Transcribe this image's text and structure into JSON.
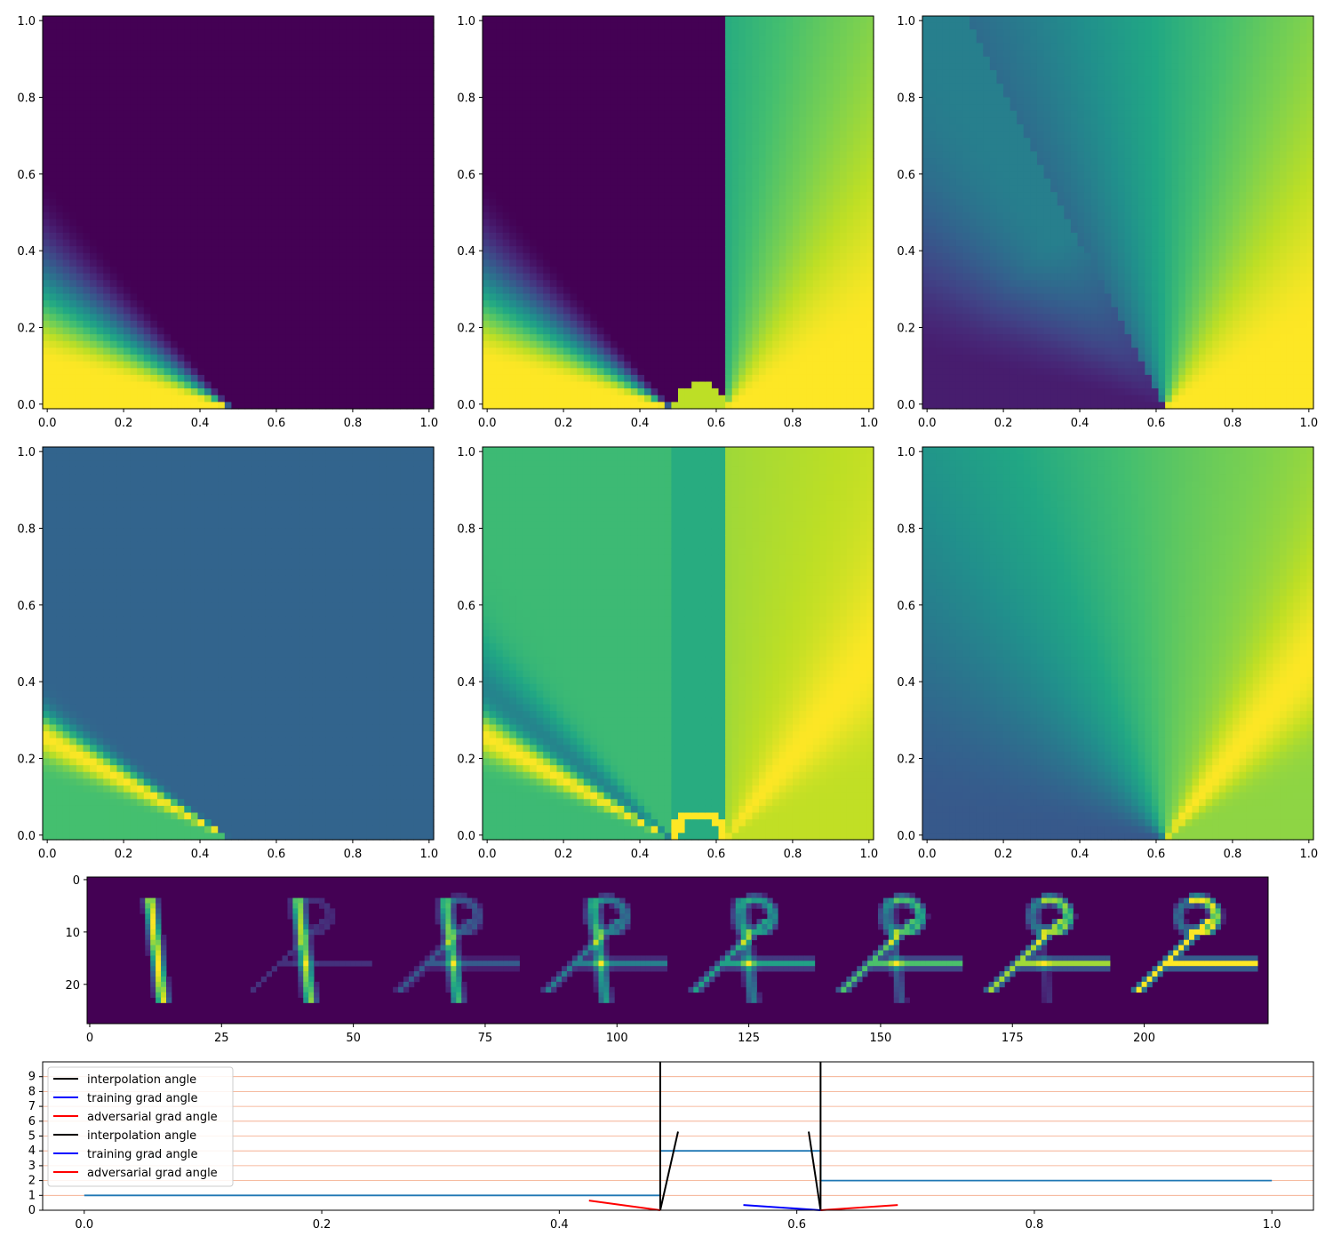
{
  "colormap": "viridis",
  "chart_data": [
    {
      "type": "heatmap",
      "panel": "row1-col1",
      "field": "regionA",
      "invert": false,
      "center_x": 0.485,
      "xlim": [
        0,
        1
      ],
      "ylim": [
        0,
        1
      ],
      "xticks": [
        "0.0",
        "0.2",
        "0.4",
        "0.6",
        "0.8",
        "1.0"
      ],
      "yticks": [
        "0.0",
        "0.2",
        "0.4",
        "0.6",
        "0.8",
        "1.0"
      ]
    },
    {
      "type": "heatmap",
      "panel": "row1-col2",
      "field": "regionB",
      "invert": false,
      "center_x": [
        0.485,
        0.62
      ],
      "xlim": [
        0,
        1
      ],
      "ylim": [
        0,
        1
      ],
      "xticks": [
        "0.0",
        "0.2",
        "0.4",
        "0.6",
        "0.8",
        "1.0"
      ],
      "yticks": [
        "0.0",
        "0.2",
        "0.4",
        "0.6",
        "0.8",
        "1.0"
      ]
    },
    {
      "type": "heatmap",
      "panel": "row1-col3",
      "field": "regionC",
      "invert": false,
      "center_x": 0.62,
      "xlim": [
        0,
        1
      ],
      "ylim": [
        0,
        1
      ],
      "xticks": [
        "0.0",
        "0.2",
        "0.4",
        "0.6",
        "0.8",
        "1.0"
      ],
      "yticks": [
        "0.0",
        "0.2",
        "0.4",
        "0.6",
        "0.8",
        "1.0"
      ]
    },
    {
      "type": "heatmap",
      "panel": "row2-col1",
      "field": "boundaryA",
      "invert": false,
      "center_x": 0.485,
      "xlim": [
        0,
        1
      ],
      "ylim": [
        0,
        1
      ],
      "xticks": [
        "0.0",
        "0.2",
        "0.4",
        "0.6",
        "0.8",
        "1.0"
      ],
      "yticks": [
        "0.0",
        "0.2",
        "0.4",
        "0.6",
        "0.8",
        "1.0"
      ]
    },
    {
      "type": "heatmap",
      "panel": "row2-col2",
      "field": "boundaryB",
      "invert": false,
      "center_x": [
        0.485,
        0.62
      ],
      "xlim": [
        0,
        1
      ],
      "ylim": [
        0,
        1
      ],
      "xticks": [
        "0.0",
        "0.2",
        "0.4",
        "0.6",
        "0.8",
        "1.0"
      ],
      "yticks": [
        "0.0",
        "0.2",
        "0.4",
        "0.6",
        "0.8",
        "1.0"
      ]
    },
    {
      "type": "heatmap",
      "panel": "row2-col3",
      "field": "boundaryC",
      "invert": false,
      "center_x": 0.62,
      "xlim": [
        0,
        1
      ],
      "ylim": [
        0,
        1
      ],
      "xticks": [
        "0.0",
        "0.2",
        "0.4",
        "0.6",
        "0.8",
        "1.0"
      ],
      "yticks": [
        "0.0",
        "0.2",
        "0.4",
        "0.6",
        "0.8",
        "1.0"
      ]
    },
    {
      "type": "image",
      "panel": "interpolation-strip",
      "description": "8 digit images (28x28) interpolating from digit 1 to digit 2",
      "frames": 8,
      "xlim": [
        0,
        224
      ],
      "ylim": [
        28,
        0
      ],
      "xticks": [
        "0",
        "25",
        "50",
        "75",
        "100",
        "125",
        "150",
        "175",
        "200"
      ],
      "yticks": [
        "0",
        "10",
        "20"
      ]
    },
    {
      "type": "line",
      "panel": "class-plot",
      "xlim": [
        0,
        1
      ],
      "ylim": [
        0,
        10
      ],
      "xticks": [
        "0.0",
        "0.2",
        "0.4",
        "0.6",
        "0.8",
        "1.0"
      ],
      "yticks": [
        "0",
        "1",
        "2",
        "3",
        "4",
        "5",
        "6",
        "7",
        "8",
        "9"
      ],
      "series": [
        {
          "name": "",
          "color": "#1f77b4",
          "x": [
            0,
            0.485,
            0.485,
            0.62,
            0.62,
            1.0
          ],
          "y": [
            1,
            1,
            4,
            4,
            2,
            2
          ]
        },
        {
          "name": "interpolation angle",
          "color": "#000000",
          "segments": [
            [
              [
                0.485,
                10
              ],
              [
                0.485,
                0
              ]
            ],
            [
              [
                0.62,
                10
              ],
              [
                0.62,
                0
              ]
            ],
            [
              [
                0.485,
                0
              ],
              [
                0.5,
                5.3
              ]
            ],
            [
              [
                0.62,
                0
              ],
              [
                0.61,
                5.3
              ]
            ]
          ]
        },
        {
          "name": "training grad angle",
          "color": "#0000ff",
          "segments": [
            [
              [
                0.555,
                0.35
              ],
              [
                0.62,
                0
              ]
            ]
          ]
        },
        {
          "name": "adversarial grad angle",
          "color": "#ff0000",
          "segments": [
            [
              [
                0.425,
                0.65
              ],
              [
                0.485,
                0
              ]
            ],
            [
              [
                0.62,
                0
              ],
              [
                0.685,
                0.35
              ]
            ]
          ]
        }
      ],
      "hlines": [
        1,
        2,
        3,
        4,
        5,
        6,
        7,
        8,
        9
      ],
      "hline_color": "#f4a582",
      "legend": {
        "placement": "top-left",
        "entries": [
          {
            "label": "interpolation angle",
            "color": "#000000"
          },
          {
            "label": "training grad angle",
            "color": "#0000ff"
          },
          {
            "label": "adversarial grad angle",
            "color": "#ff0000"
          },
          {
            "label": "interpolation angle",
            "color": "#000000"
          },
          {
            "label": "training grad angle",
            "color": "#0000ff"
          },
          {
            "label": "adversarial grad angle",
            "color": "#ff0000"
          }
        ]
      }
    }
  ]
}
